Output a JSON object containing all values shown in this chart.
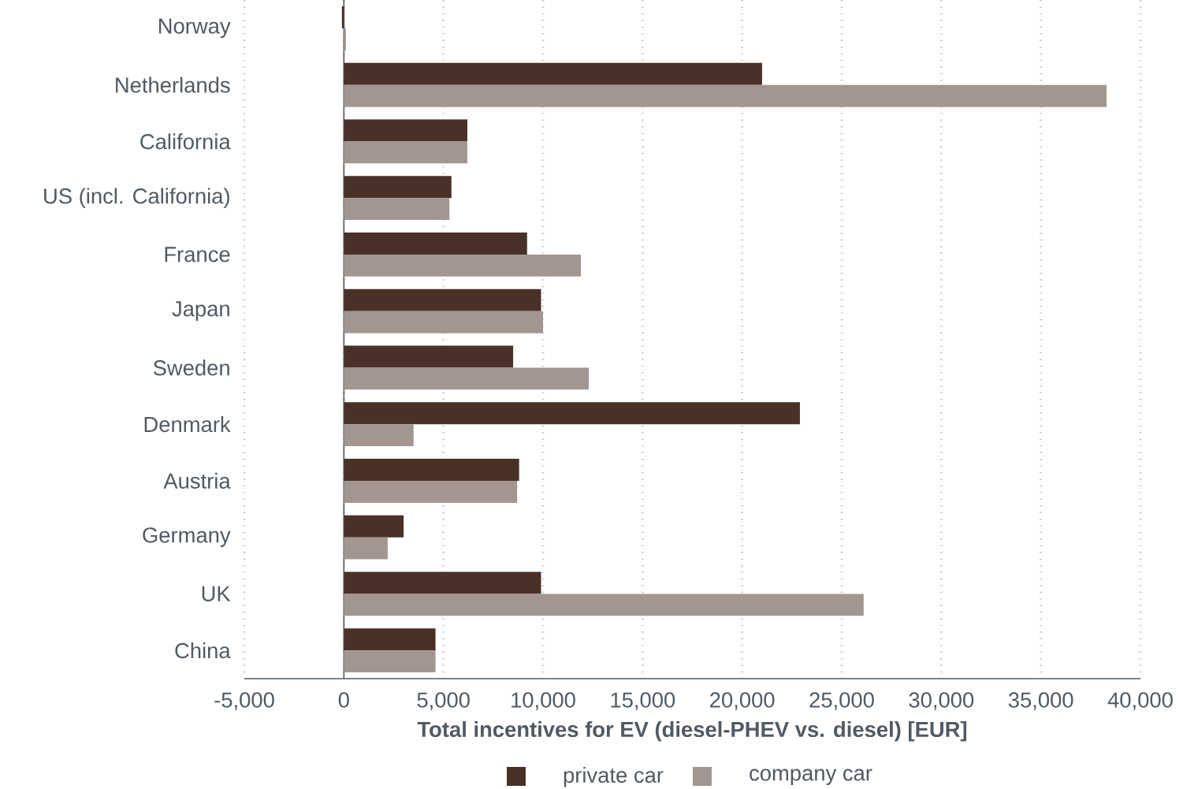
{
  "chart_data": {
    "type": "bar",
    "orientation": "horizontal",
    "xlabel": "Total incentives for EV (diesel-PHEV vs. diesel) [EUR]",
    "categories": [
      "Norway",
      "Netherlands",
      "California",
      "US (incl. California)",
      "France",
      "Japan",
      "Sweden",
      "Denmark",
      "Austria",
      "Germany",
      "UK",
      "China"
    ],
    "series": [
      {
        "name": "private car",
        "color": "#4a3128",
        "values": [
          -100,
          21000,
          6200,
          5400,
          9200,
          9900,
          8500,
          22900,
          8800,
          3000,
          9900,
          4600
        ]
      },
      {
        "name": "company car",
        "color": "#a39690",
        "values": [
          100,
          38300,
          6200,
          5300,
          11900,
          10000,
          12300,
          3500,
          8700,
          2200,
          26100,
          4600
        ]
      }
    ],
    "xlim": [
      -5000,
      40000
    ],
    "xticks": [
      {
        "value": -5000,
        "label": "-5,000"
      },
      0,
      {
        "value": 5000,
        "label": "5,000"
      },
      {
        "value": 10000,
        "label": "10,000"
      },
      {
        "value": 15000,
        "label": "15,000"
      },
      {
        "value": 20000,
        "label": "20,000"
      },
      {
        "value": 25000,
        "label": "25,000"
      },
      {
        "value": 30000,
        "label": "30,000"
      },
      {
        "value": 35000,
        "label": "35,000"
      },
      {
        "value": 40000,
        "label": "40,000"
      }
    ],
    "ref_lines": [
      {
        "axis": "x",
        "value": 0,
        "color": "#5a6570"
      }
    ],
    "grid": "x",
    "legend": "bottom"
  }
}
